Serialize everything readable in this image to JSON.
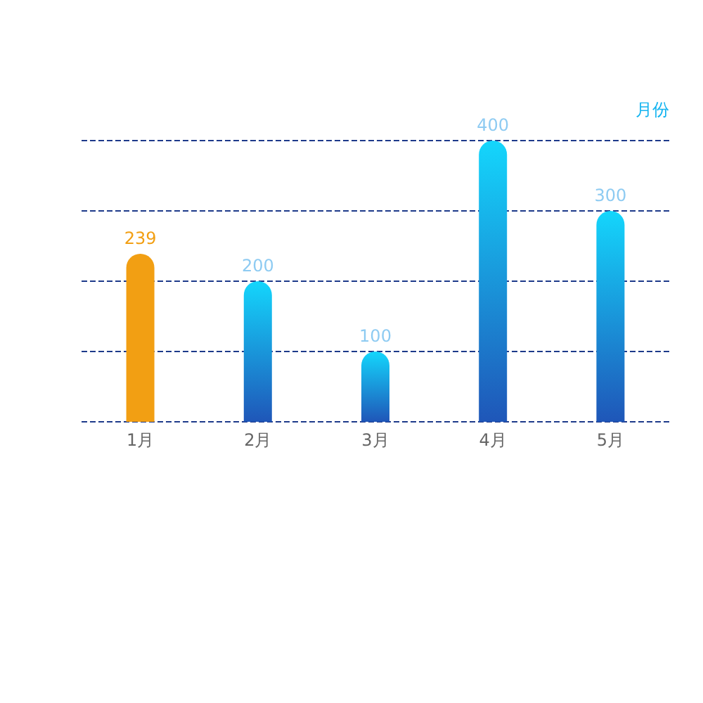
{
  "chart_data": {
    "type": "bar",
    "xlabel": "月份",
    "categories": [
      "1月",
      "2月",
      "3月",
      "4月",
      "5月"
    ],
    "values": [
      239,
      200,
      100,
      400,
      300
    ],
    "colors": [
      "#f29f13",
      "#14d6fc",
      "#14d6fc",
      "#14d6fc",
      "#14d6fc"
    ],
    "ylim": [
      0,
      400
    ],
    "yticks": [
      {
        "value": 0,
        "label": null
      },
      {
        "value": 100,
        "label": null
      },
      {
        "value": 200,
        "label": null
      },
      {
        "value": 300,
        "label": null
      },
      {
        "value": 400,
        "label": null
      }
    ],
    "grid": "y",
    "data_labels": true,
    "tick_labels": "x"
  }
}
